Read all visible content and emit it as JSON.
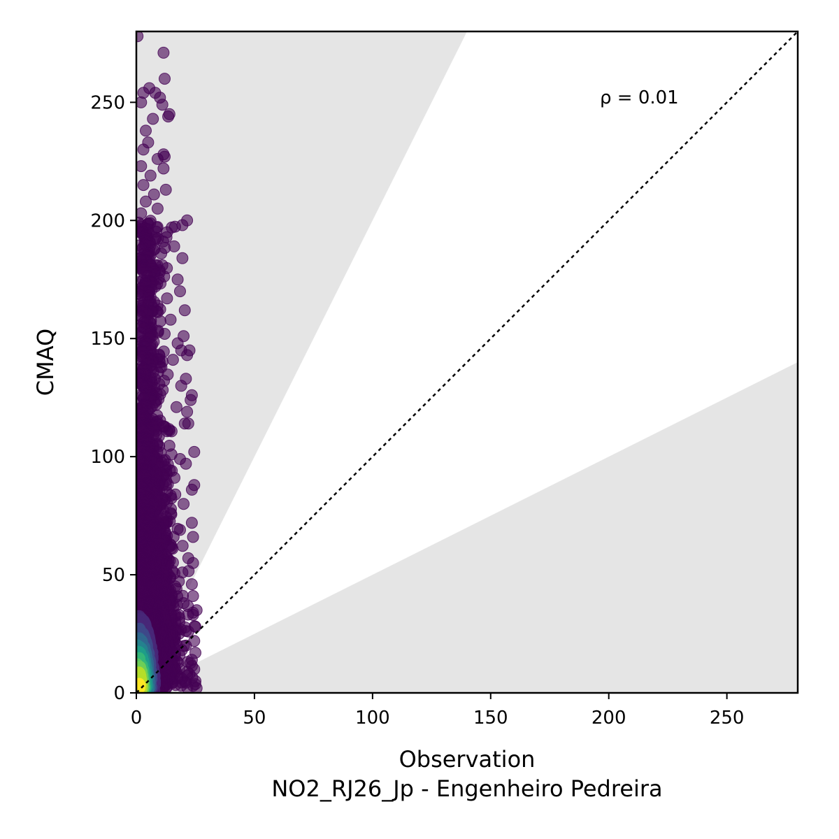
{
  "chart_data": {
    "type": "scatter",
    "title": "",
    "xlabel": "Observation",
    "xlabel_sub": "NO2_RJ26_Jp - Engenheiro Pedreira",
    "ylabel": "CMAQ",
    "xlim": [
      0,
      280
    ],
    "ylim": [
      0,
      280
    ],
    "xticks": [
      0,
      50,
      100,
      150,
      200,
      250
    ],
    "yticks": [
      0,
      50,
      100,
      150,
      200,
      250
    ],
    "grid": false,
    "annotation": "ρ = 0.01",
    "reference_line": {
      "type": "1:1",
      "style": "dotted",
      "color": "#000000"
    },
    "shaded_regions": [
      {
        "name": "above 2:1",
        "slope_min": 2,
        "color": "#e5e5e5"
      },
      {
        "name": "below 1:2",
        "slope_max": 0.5,
        "color": "#e5e5e5"
      }
    ],
    "colormap": "viridis",
    "marker_alpha": 0.6,
    "cloud": {
      "x_range": [
        0,
        25
      ],
      "y_range": [
        0,
        272
      ],
      "dense_core": {
        "x": [
          1,
          6
        ],
        "y": [
          2,
          30
        ]
      }
    },
    "outliers": [
      [
        0.5,
        278
      ],
      [
        11.5,
        271
      ],
      [
        12,
        260
      ],
      [
        3,
        254
      ],
      [
        5.5,
        256
      ],
      [
        8,
        254
      ],
      [
        10,
        252
      ],
      [
        2,
        250
      ],
      [
        11,
        249
      ],
      [
        14,
        245
      ],
      [
        13.5,
        244
      ],
      [
        7,
        243
      ],
      [
        4,
        238
      ],
      [
        5,
        233
      ],
      [
        3,
        230
      ],
      [
        11.5,
        228
      ],
      [
        12,
        227
      ],
      [
        9,
        226
      ],
      [
        2,
        223
      ],
      [
        11.5,
        222
      ],
      [
        6,
        219
      ],
      [
        3,
        215
      ],
      [
        12.5,
        213
      ],
      [
        7.5,
        211
      ],
      [
        4,
        208
      ],
      [
        9,
        205
      ],
      [
        2,
        203
      ],
      [
        21.5,
        200
      ],
      [
        19.5,
        198
      ],
      [
        15,
        197
      ],
      [
        13,
        195
      ],
      [
        8,
        192
      ],
      [
        16,
        189
      ],
      [
        19.5,
        184
      ],
      [
        11,
        181
      ],
      [
        17.5,
        175
      ],
      [
        18.5,
        170
      ],
      [
        13,
        167
      ],
      [
        7,
        163
      ],
      [
        20.5,
        162
      ],
      [
        14.5,
        158
      ],
      [
        12,
        152
      ],
      [
        20,
        151
      ],
      [
        17.5,
        148
      ],
      [
        19,
        145
      ],
      [
        22.5,
        145
      ],
      [
        21.5,
        143
      ],
      [
        15.5,
        141
      ],
      [
        10,
        138
      ],
      [
        21,
        133
      ],
      [
        19,
        130
      ],
      [
        23.5,
        126
      ],
      [
        23,
        124
      ],
      [
        17,
        121
      ],
      [
        21.5,
        119
      ],
      [
        22,
        114
      ],
      [
        20.5,
        114
      ],
      [
        14,
        111
      ],
      [
        24.5,
        102
      ],
      [
        18.5,
        99
      ],
      [
        21,
        97
      ],
      [
        15,
        94
      ],
      [
        24.5,
        88
      ],
      [
        23.5,
        86
      ],
      [
        16.5,
        84
      ],
      [
        20,
        80
      ],
      [
        23.5,
        72
      ],
      [
        18.5,
        69
      ],
      [
        24,
        66
      ],
      [
        14,
        62
      ],
      [
        22,
        57
      ],
      [
        24,
        55
      ],
      [
        19.5,
        51
      ],
      [
        23.5,
        46
      ],
      [
        17,
        44
      ],
      [
        24,
        41
      ],
      [
        20,
        38
      ],
      [
        25.5,
        35
      ],
      [
        24,
        33
      ],
      [
        25,
        28
      ],
      [
        22,
        26
      ],
      [
        24.5,
        22
      ],
      [
        21,
        20
      ],
      [
        25,
        17
      ],
      [
        23.5,
        14
      ],
      [
        24.5,
        10
      ],
      [
        22.5,
        8
      ],
      [
        25,
        5
      ],
      [
        24,
        3
      ],
      [
        25.5,
        2
      ]
    ]
  }
}
